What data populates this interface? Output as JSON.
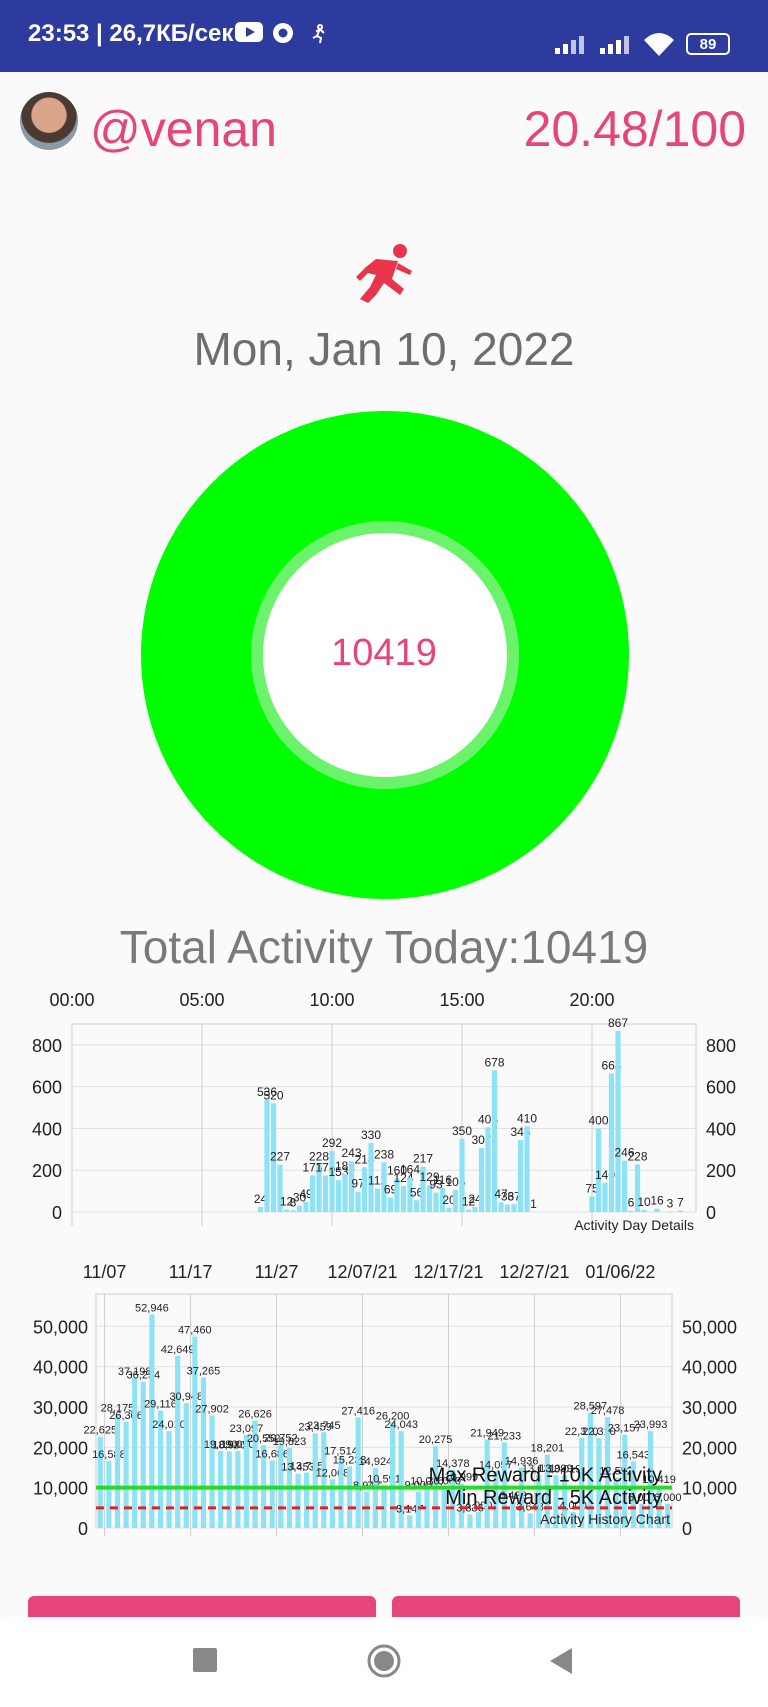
{
  "status_bar": {
    "text": "23:53 | 26,7КБ/сек",
    "battery": "89"
  },
  "user": {
    "handle": "@venan",
    "score": "20.48/100"
  },
  "date": "Mon, Jan 10, 2022",
  "steps_center": "10419",
  "total_label": "Total Activity Today:10419",
  "colors": {
    "accent": "#e6457a",
    "ring": "#00ff00",
    "bar": "#8de3f5"
  },
  "chart_data": [
    {
      "type": "bar",
      "title": "Activity Day Details",
      "x_tick_labels": [
        "00:00",
        "05:00",
        "10:00",
        "15:00",
        "20:00"
      ],
      "y_ticks": [
        0,
        200,
        400,
        600,
        800
      ],
      "ylim": [
        0,
        900
      ],
      "bars": [
        {
          "t": 7.25,
          "v": 24
        },
        {
          "t": 7.5,
          "v": 536
        },
        {
          "t": 7.75,
          "v": 520
        },
        {
          "t": 8.0,
          "v": 227
        },
        {
          "t": 8.25,
          "v": 12
        },
        {
          "t": 8.5,
          "v": 8
        },
        {
          "t": 8.75,
          "v": 30
        },
        {
          "t": 9.0,
          "v": 49
        },
        {
          "t": 9.25,
          "v": 175
        },
        {
          "t": 9.5,
          "v": 228
        },
        {
          "t": 9.75,
          "v": 175
        },
        {
          "t": 10.0,
          "v": 292
        },
        {
          "t": 10.25,
          "v": 153
        },
        {
          "t": 10.5,
          "v": 181
        },
        {
          "t": 10.75,
          "v": 243
        },
        {
          "t": 11.0,
          "v": 97
        },
        {
          "t": 11.25,
          "v": 214
        },
        {
          "t": 11.5,
          "v": 330
        },
        {
          "t": 11.75,
          "v": 112
        },
        {
          "t": 12.0,
          "v": 238
        },
        {
          "t": 12.25,
          "v": 69
        },
        {
          "t": 12.5,
          "v": 160
        },
        {
          "t": 12.75,
          "v": 124
        },
        {
          "t": 13.0,
          "v": 164
        },
        {
          "t": 13.25,
          "v": 56
        },
        {
          "t": 13.5,
          "v": 217
        },
        {
          "t": 13.75,
          "v": 129
        },
        {
          "t": 14.0,
          "v": 93
        },
        {
          "t": 14.25,
          "v": 116
        },
        {
          "t": 14.5,
          "v": 20
        },
        {
          "t": 14.75,
          "v": 105
        },
        {
          "t": 15.0,
          "v": 350
        },
        {
          "t": 15.25,
          "v": 12
        },
        {
          "t": 15.5,
          "v": 24
        },
        {
          "t": 15.75,
          "v": 307
        },
        {
          "t": 16.0,
          "v": 405
        },
        {
          "t": 16.25,
          "v": 678
        },
        {
          "t": 16.5,
          "v": 47
        },
        {
          "t": 16.75,
          "v": 36
        },
        {
          "t": 17.0,
          "v": 37
        },
        {
          "t": 17.25,
          "v": 345
        },
        {
          "t": 17.5,
          "v": 410
        },
        {
          "t": 17.75,
          "v": 1
        },
        {
          "t": 20.0,
          "v": 75
        },
        {
          "t": 20.25,
          "v": 400
        },
        {
          "t": 20.5,
          "v": 140
        },
        {
          "t": 20.75,
          "v": 664
        },
        {
          "t": 21.0,
          "v": 867
        },
        {
          "t": 21.25,
          "v": 246
        },
        {
          "t": 21.5,
          "v": 6
        },
        {
          "t": 21.75,
          "v": 228
        },
        {
          "t": 22.0,
          "v": 10
        },
        {
          "t": 22.5,
          "v": 16
        },
        {
          "t": 23.0,
          "v": 3
        },
        {
          "t": 23.4,
          "v": 7
        }
      ]
    },
    {
      "type": "bar",
      "title": "Activity History Chart",
      "x_tick_labels": [
        "11/07",
        "11/17",
        "11/27",
        "12/07/21",
        "12/17/21",
        "12/27/21",
        "01/06/22"
      ],
      "y_tick_labels": [
        "0",
        "10,000",
        "20,000",
        "30,000",
        "40,000",
        "50,000"
      ],
      "ylim": [
        0,
        58000
      ],
      "max_reward": {
        "value": 10000,
        "label": "Max Reward - 10K Activity"
      },
      "min_reward": {
        "value": 5000,
        "label": "Min Reward - 5K Activity"
      },
      "values": [
        22625,
        16588,
        28175,
        26306,
        37198,
        36254,
        52946,
        29116,
        24010,
        42649,
        30948,
        47460,
        37265,
        27902,
        19090,
        18980,
        19090,
        23097,
        26626,
        20552,
        16686,
        20752,
        19823,
        13453,
        13735,
        23459,
        23745,
        12068,
        17514,
        15233,
        27416,
        8947,
        14924,
        10591,
        26200,
        24043,
        3147,
        9000,
        10086,
        20275,
        10000,
        14378,
        10999,
        3336,
        4000,
        21949,
        14057,
        21233,
        6429,
        14936,
        3648,
        13131,
        18201,
        13099,
        13019,
        4000,
        22310,
        28597,
        22310,
        27478,
        12552,
        23157,
        16543,
        6000,
        23993,
        10419,
        6000
      ]
    }
  ]
}
